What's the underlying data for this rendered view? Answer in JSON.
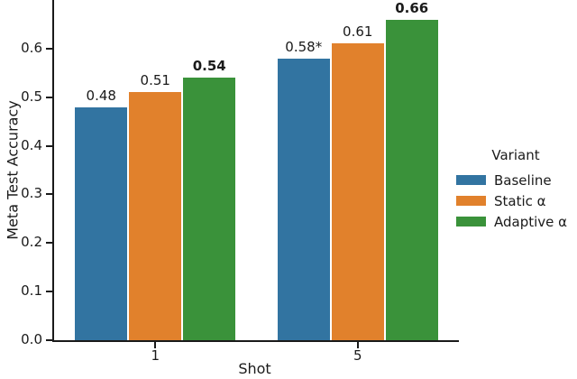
{
  "chart_data": {
    "type": "bar",
    "title": "",
    "xlabel": "Shot",
    "ylabel": "Meta Test Accuracy",
    "categories": [
      "1",
      "5"
    ],
    "series": [
      {
        "name": "Baseline",
        "color": "#3274a1",
        "values": [
          0.48,
          0.58
        ],
        "value_labels": [
          "0.48",
          "0.58*"
        ],
        "bold_labels": false
      },
      {
        "name": "Static α",
        "color": "#e1812c",
        "values": [
          0.51,
          0.61
        ],
        "value_labels": [
          "0.51",
          "0.61"
        ],
        "bold_labels": false
      },
      {
        "name": "Adaptive α",
        "color": "#3a923a",
        "values": [
          0.54,
          0.66
        ],
        "value_labels": [
          "0.54",
          "0.66"
        ],
        "bold_labels": true
      }
    ],
    "ylim": [
      0,
      0.7
    ],
    "yticks": [
      0.0,
      0.1,
      0.2,
      0.3,
      0.4,
      0.5,
      0.6
    ],
    "ytick_labels": [
      "0.0",
      "0.1",
      "0.2",
      "0.3",
      "0.4",
      "0.5",
      "0.6"
    ],
    "legend": {
      "title": "Variant",
      "position": "center-right",
      "entries": [
        "Baseline",
        "Static α",
        "Adaptive α"
      ]
    },
    "grid": false,
    "axis_color": "#1a1a1a",
    "text_color": "#1a1a1a",
    "background_color": "#ffffff"
  }
}
